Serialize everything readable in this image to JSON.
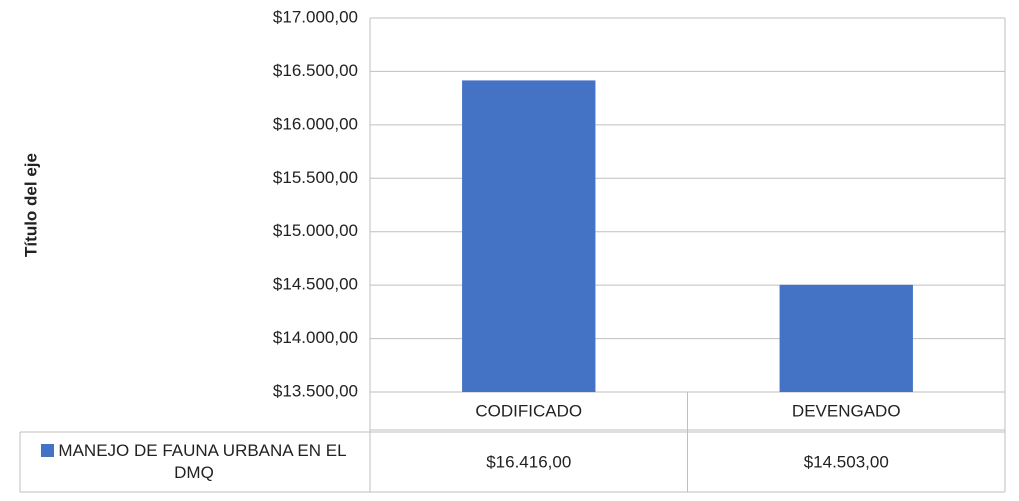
{
  "chart_data": {
    "type": "bar",
    "y_axis_label": "Título del eje",
    "categories": [
      "CODIFICADO",
      "DEVENGADO"
    ],
    "series": [
      {
        "name": "MANEJO DE FAUNA URBANA EN EL DMQ",
        "color": "#4472c4",
        "values": [
          16416,
          14503
        ],
        "value_labels": [
          "$16.416,00",
          "$14.503,00"
        ]
      }
    ],
    "ylim": [
      13500,
      17000
    ],
    "yticks": [
      {
        "value": 13500,
        "label": "$13.500,00"
      },
      {
        "value": 14000,
        "label": "$14.000,00"
      },
      {
        "value": 14500,
        "label": "$14.500,00"
      },
      {
        "value": 15000,
        "label": "$15.000,00"
      },
      {
        "value": 15500,
        "label": "$15.500,00"
      },
      {
        "value": 16000,
        "label": "$16.000,00"
      },
      {
        "value": 16500,
        "label": "$16.500,00"
      },
      {
        "value": 17000,
        "label": "$17.000,00"
      }
    ],
    "grid": true
  }
}
